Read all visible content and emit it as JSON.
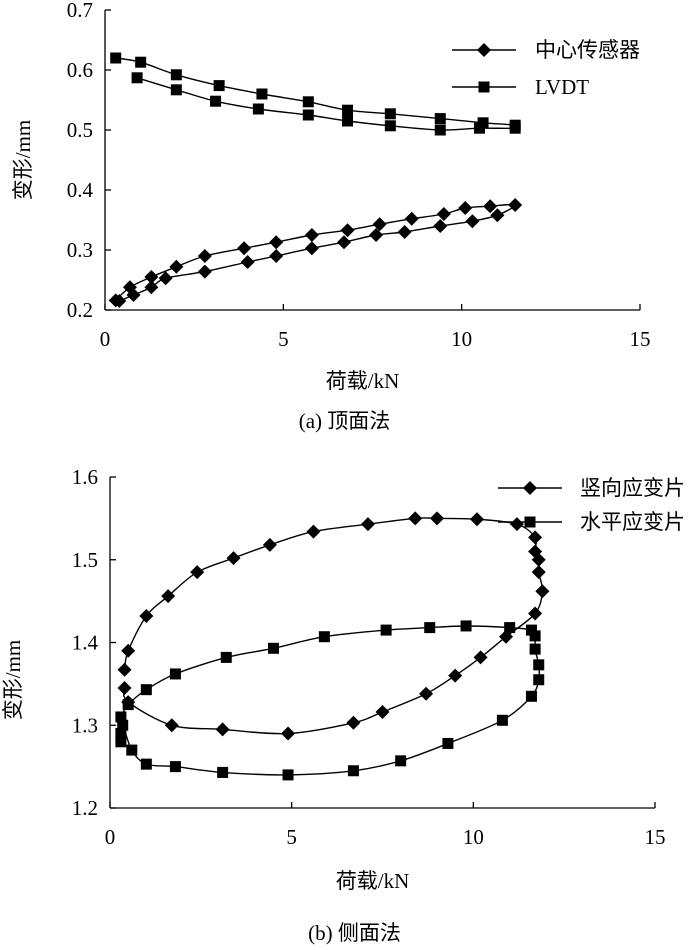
{
  "chart_data": [
    {
      "type": "line",
      "caption": "(a) 顶面法",
      "xlabel": "荷载/kN",
      "ylabel": "变形/mm",
      "xlim": [
        0,
        15
      ],
      "ylim": [
        0.2,
        0.7
      ],
      "xticks": [
        "0",
        "5",
        "10",
        "15"
      ],
      "yticks": [
        "0.2",
        "0.3",
        "0.4",
        "0.5",
        "0.6",
        "0.7"
      ],
      "legend_position": "top-right",
      "series": [
        {
          "name": "中心传感器",
          "marker": "diamond",
          "x": [
            0.3,
            0.7,
            1.3,
            2.0,
            2.8,
            3.9,
            4.8,
            5.8,
            6.8,
            7.7,
            8.6,
            9.5,
            10.1,
            10.8,
            11.5,
            11.0,
            10.3,
            9.4,
            8.4,
            7.6,
            6.7,
            5.8,
            4.8,
            4.0,
            2.8,
            1.7,
            1.3,
            0.8,
            0.4
          ],
          "y": [
            0.216,
            0.238,
            0.255,
            0.272,
            0.29,
            0.303,
            0.313,
            0.325,
            0.333,
            0.343,
            0.352,
            0.36,
            0.37,
            0.373,
            0.375,
            0.358,
            0.348,
            0.34,
            0.33,
            0.325,
            0.313,
            0.303,
            0.29,
            0.28,
            0.264,
            0.253,
            0.238,
            0.225,
            0.215
          ]
        },
        {
          "name": "LVDT",
          "marker": "square",
          "x": [
            0.3,
            1.0,
            2.0,
            3.2,
            4.4,
            5.7,
            6.8,
            8.0,
            9.4,
            10.6,
            11.5,
            11.5,
            10.5,
            9.4,
            8.0,
            6.8,
            5.7,
            4.3,
            3.1,
            2.0,
            0.9
          ],
          "y": [
            0.62,
            0.613,
            0.592,
            0.574,
            0.56,
            0.547,
            0.533,
            0.527,
            0.519,
            0.512,
            0.508,
            0.503,
            0.503,
            0.5,
            0.507,
            0.515,
            0.525,
            0.535,
            0.548,
            0.567,
            0.587
          ]
        }
      ]
    },
    {
      "type": "line",
      "caption": "(b) 侧面法",
      "xlabel": "荷载/kN",
      "ylabel": "变形/mm",
      "xlim": [
        0,
        15
      ],
      "ylim": [
        1.2,
        1.6
      ],
      "xticks": [
        "0",
        "5",
        "10",
        "15"
      ],
      "yticks": [
        "1.2",
        "1.3",
        "1.4",
        "1.5",
        "1.6"
      ],
      "legend_position": "top-right",
      "series": [
        {
          "name": "竖向应变片",
          "marker": "diamond",
          "x": [
            0.4,
            0.5,
            1.0,
            1.6,
            2.4,
            3.4,
            4.4,
            5.6,
            7.1,
            8.4,
            9.0,
            10.1,
            11.2,
            11.7,
            11.7,
            11.8,
            11.8,
            11.9,
            11.7,
            10.9,
            10.2,
            9.5,
            8.7,
            7.5,
            6.7,
            4.9,
            3.1,
            1.7,
            0.5,
            0.4
          ],
          "y": [
            1.367,
            1.39,
            1.432,
            1.456,
            1.485,
            1.502,
            1.518,
            1.534,
            1.543,
            1.55,
            1.55,
            1.549,
            1.543,
            1.527,
            1.51,
            1.5,
            1.485,
            1.462,
            1.435,
            1.407,
            1.382,
            1.36,
            1.338,
            1.316,
            1.303,
            1.29,
            1.295,
            1.3,
            1.328,
            1.345
          ]
        },
        {
          "name": "水平应变片",
          "marker": "square",
          "x": [
            0.3,
            0.3,
            0.35,
            0.6,
            1.0,
            1.8,
            3.1,
            4.9,
            6.7,
            8.0,
            9.3,
            10.8,
            11.6,
            11.8,
            11.8,
            11.7,
            11.7,
            11.6,
            11.0,
            9.8,
            8.8,
            7.6,
            5.9,
            4.5,
            3.2,
            1.8,
            1.0,
            0.5,
            0.3
          ],
          "y": [
            1.28,
            1.29,
            1.3,
            1.27,
            1.253,
            1.25,
            1.243,
            1.24,
            1.245,
            1.257,
            1.278,
            1.306,
            1.335,
            1.355,
            1.373,
            1.392,
            1.408,
            1.415,
            1.418,
            1.42,
            1.418,
            1.415,
            1.407,
            1.393,
            1.382,
            1.362,
            1.343,
            1.325,
            1.31
          ]
        }
      ]
    }
  ]
}
